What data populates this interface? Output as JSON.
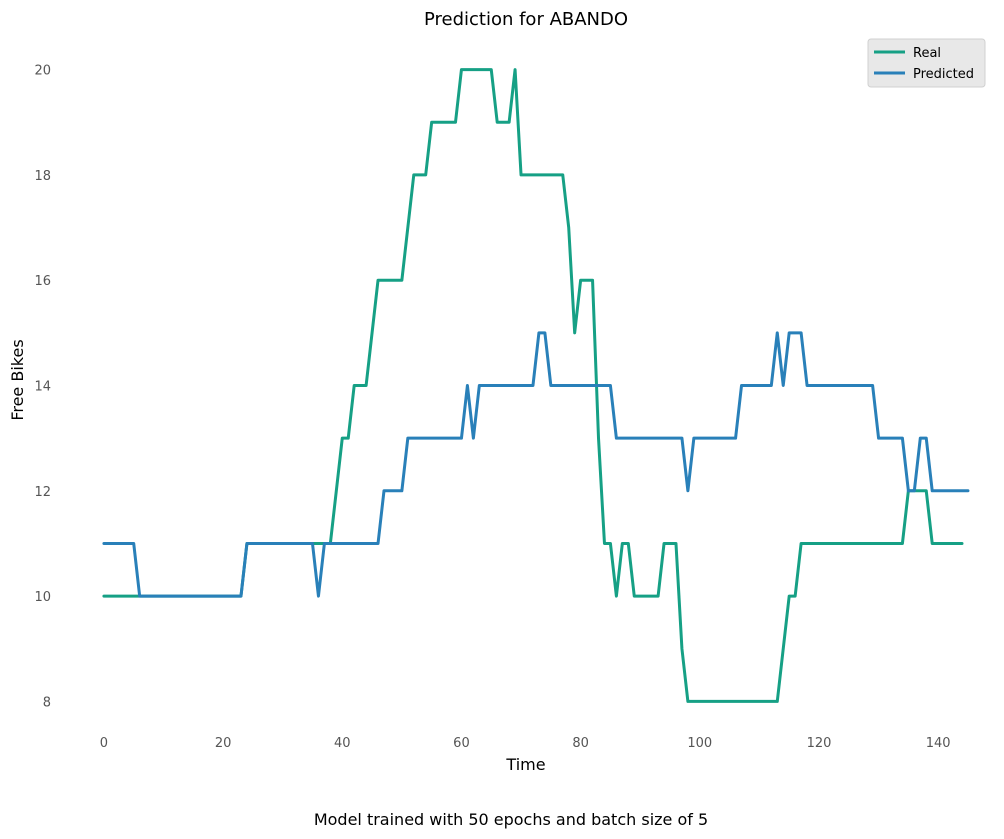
{
  "chart_data": {
    "type": "line",
    "title": "Prediction for ABANDO",
    "xlabel": "Time",
    "ylabel": "Free Bikes",
    "caption": "Model trained with 50 epochs and batch size of 5",
    "xlim": [
      -2,
      144
    ],
    "ylim": [
      7.4,
      20.6
    ],
    "xticks": [
      0,
      20,
      40,
      60,
      80,
      100,
      120,
      140
    ],
    "yticks": [
      8,
      10,
      12,
      14,
      16,
      18,
      20
    ],
    "grid": false,
    "legend_position": "top-right",
    "series": [
      {
        "name": "Real",
        "color": "#16a085",
        "values": [
          10,
          10,
          10,
          10,
          10,
          10,
          10,
          10,
          10,
          10,
          10,
          10,
          10,
          10,
          10,
          10,
          10,
          10,
          10,
          10,
          10,
          10,
          10,
          10,
          11,
          11,
          11,
          11,
          11,
          11,
          11,
          11,
          11,
          11,
          11,
          11,
          11,
          11,
          11,
          12,
          13,
          13,
          14,
          14,
          14,
          15,
          16,
          16,
          16,
          16,
          16,
          17,
          18,
          18,
          18,
          19,
          19,
          19,
          19,
          19,
          20,
          20,
          20,
          20,
          20,
          20,
          19,
          19,
          19,
          20,
          18,
          18,
          18,
          18,
          18,
          18,
          18,
          18,
          17,
          15,
          16,
          16,
          16,
          13,
          11,
          11,
          10,
          11,
          11,
          10,
          10,
          10,
          10,
          10,
          11,
          11,
          11,
          9,
          8,
          8,
          8,
          8,
          8,
          8,
          8,
          8,
          8,
          8,
          8,
          8,
          8,
          8,
          8,
          8,
          9,
          10,
          10,
          11,
          11,
          11,
          11,
          11,
          11,
          11,
          11,
          11,
          11,
          11,
          11,
          11,
          11,
          11,
          11,
          11,
          11,
          12,
          12,
          12,
          12,
          11,
          11,
          11,
          11,
          11,
          11
        ]
      },
      {
        "name": "Predicted",
        "color": "#2980b9",
        "values": [
          11,
          11,
          11,
          11,
          11,
          11,
          10,
          10,
          10,
          10,
          10,
          10,
          10,
          10,
          10,
          10,
          10,
          10,
          10,
          10,
          10,
          10,
          10,
          10,
          11,
          11,
          11,
          11,
          11,
          11,
          11,
          11,
          11,
          11,
          11,
          11,
          10,
          11,
          11,
          11,
          11,
          11,
          11,
          11,
          11,
          11,
          11,
          12,
          12,
          12,
          12,
          13,
          13,
          13,
          13,
          13,
          13,
          13,
          13,
          13,
          13,
          14,
          13,
          14,
          14,
          14,
          14,
          14,
          14,
          14,
          14,
          14,
          14,
          15,
          15,
          14,
          14,
          14,
          14,
          14,
          14,
          14,
          14,
          14,
          14,
          14,
          13,
          13,
          13,
          13,
          13,
          13,
          13,
          13,
          13,
          13,
          13,
          13,
          12,
          13,
          13,
          13,
          13,
          13,
          13,
          13,
          13,
          14,
          14,
          14,
          14,
          14,
          14,
          15,
          14,
          15,
          15,
          15,
          14,
          14,
          14,
          14,
          14,
          14,
          14,
          14,
          14,
          14,
          14,
          14,
          13,
          13,
          13,
          13,
          13,
          12,
          12,
          13,
          13,
          12,
          12,
          12,
          12,
          12,
          12,
          12
        ]
      }
    ]
  }
}
